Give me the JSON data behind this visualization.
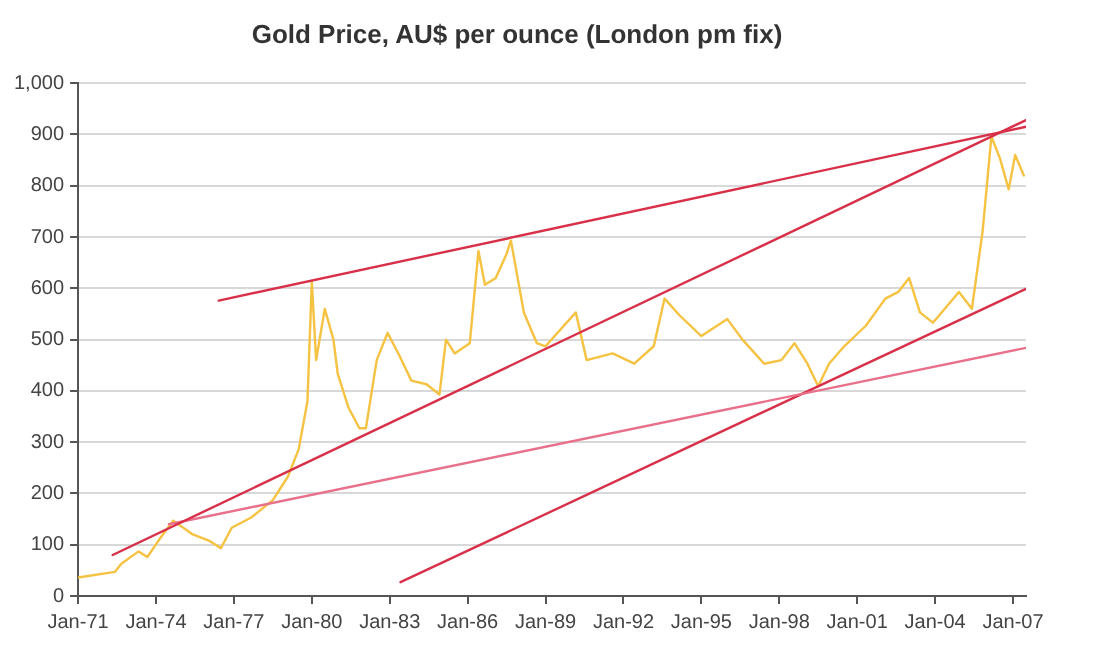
{
  "chart_data": {
    "type": "line",
    "title": "Gold Price, AU$ per ounce (London pm fix)",
    "xlim": [
      "1971-01",
      "2007-07"
    ],
    "xticks": [
      {
        "value": "1971-01",
        "label": "Jan-71"
      },
      {
        "value": "1974-01",
        "label": "Jan-74"
      },
      {
        "value": "1977-01",
        "label": "Jan-77"
      },
      {
        "value": "1980-01",
        "label": "Jan-80"
      },
      {
        "value": "1983-01",
        "label": "Jan-83"
      },
      {
        "value": "1986-01",
        "label": "Jan-86"
      },
      {
        "value": "1989-01",
        "label": "Jan-89"
      },
      {
        "value": "1992-01",
        "label": "Jan-92"
      },
      {
        "value": "1995-01",
        "label": "Jan-95"
      },
      {
        "value": "1998-01",
        "label": "Jan-98"
      },
      {
        "value": "2001-01",
        "label": "Jan-01"
      },
      {
        "value": "2004-01",
        "label": "Jan-04"
      },
      {
        "value": "2007-01",
        "label": "Jan-07"
      }
    ],
    "ylim": [
      0,
      1000
    ],
    "yticks": [
      0,
      100,
      200,
      300,
      400,
      500,
      600,
      700,
      800,
      900,
      {
        "value": 1000,
        "label": "1,000"
      }
    ],
    "grid": "y",
    "legend": false,
    "marker": "none",
    "line_style": "solid",
    "series": [
      {
        "type": "line",
        "color": "#f5c242",
        "x": [
          "1971-01",
          "1972-06",
          "1972-09",
          "1973-05",
          "1973-09",
          "1974-03",
          "1974-09",
          "1975-06",
          "1976-02",
          "1976-07",
          "1976-12",
          "1977-09",
          "1978-07",
          "1979-02",
          "1979-07",
          "1979-11",
          "1980-01",
          "1980-03",
          "1980-07",
          "1980-11",
          "1981-01",
          "1981-06",
          "1981-11",
          "1982-02",
          "1982-07",
          "1982-12",
          "1983-05",
          "1983-11",
          "1984-06",
          "1984-12",
          "1985-03",
          "1985-07",
          "1986-02",
          "1986-06",
          "1986-09",
          "1987-02",
          "1987-07",
          "1987-09",
          "1988-03",
          "1988-09",
          "1989-01",
          "1990-03",
          "1990-08",
          "1991-08",
          "1992-06",
          "1993-03",
          "1993-08",
          "1994-03",
          "1995-01",
          "1996-01",
          "1996-08",
          "1997-06",
          "1998-02",
          "1998-08",
          "1999-02",
          "1999-07",
          "1999-12",
          "2000-07",
          "2001-05",
          "2002-02",
          "2002-08",
          "2003-01",
          "2003-06",
          "2003-12",
          "2004-12",
          "2005-06",
          "2005-11",
          "2006-03",
          "2006-07",
          "2006-11",
          "2007-02",
          "2007-06"
        ],
        "values": [
          36,
          47,
          63,
          87,
          76,
          113,
          147,
          120,
          107,
          93,
          133,
          153,
          187,
          233,
          287,
          380,
          613,
          460,
          560,
          500,
          433,
          367,
          327,
          327,
          460,
          513,
          473,
          420,
          413,
          393,
          500,
          473,
          493,
          673,
          607,
          620,
          667,
          693,
          553,
          493,
          487,
          553,
          460,
          473,
          453,
          487,
          580,
          547,
          507,
          540,
          500,
          453,
          460,
          493,
          453,
          409,
          453,
          487,
          527,
          580,
          593,
          620,
          553,
          533,
          593,
          560,
          713,
          896,
          853,
          793,
          860,
          820
        ]
      },
      {
        "type": "line",
        "color": "#d9304a",
        "x": [
          "1976-06",
          "2007-07"
        ],
        "values": [
          576,
          915
        ]
      },
      {
        "type": "line",
        "color": "#d9304a",
        "x": [
          "1972-05",
          "2007-07"
        ],
        "values": [
          80,
          928
        ]
      },
      {
        "type": "line",
        "color": "#e8708a",
        "x": [
          "1974-07",
          "2007-07"
        ],
        "values": [
          140,
          484
        ]
      },
      {
        "type": "line",
        "color": "#d9304a",
        "x": [
          "1983-06",
          "2007-07"
        ],
        "values": [
          27,
          599
        ]
      }
    ]
  }
}
